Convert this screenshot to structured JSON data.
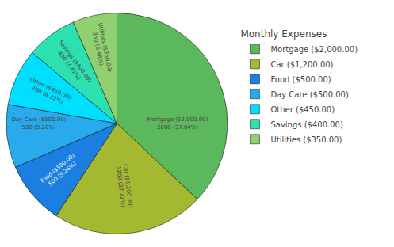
{
  "chart_data": {
    "type": "pie",
    "title": "Monthly Expenses",
    "categories": [
      "Mortgage ($2,000.00)",
      "Car ($1,200.00)",
      "Food ($500.00)",
      "Day Care ($500.00)",
      "Other ($450.00)",
      "Savings ($400.00)",
      "Utilities ($350.00)"
    ],
    "values": [
      2000,
      1200,
      500,
      500,
      450,
      400,
      350
    ],
    "value_labels": [
      "Mortgage ($2,000.00)\n2000 (37.04%)",
      "Car ($1,200.00)\n1200 (22.22%)",
      "Food ($500.00)\n500 (9.26%)",
      "Day Care ($500.00)\n500 (9.26%)",
      "Other ($450.00)\n450 (8.33%)",
      "Savings ($400.00)\n400 (7.41%)",
      "Utilities ($350.00)\n350 (6.48%)"
    ],
    "colors": [
      "#5cb85c",
      "#a4b832",
      "#1a7fe0",
      "#29aaed",
      "#00dfff",
      "#2de0b0",
      "#90d070"
    ],
    "data_labels": true,
    "legend": "right"
  }
}
